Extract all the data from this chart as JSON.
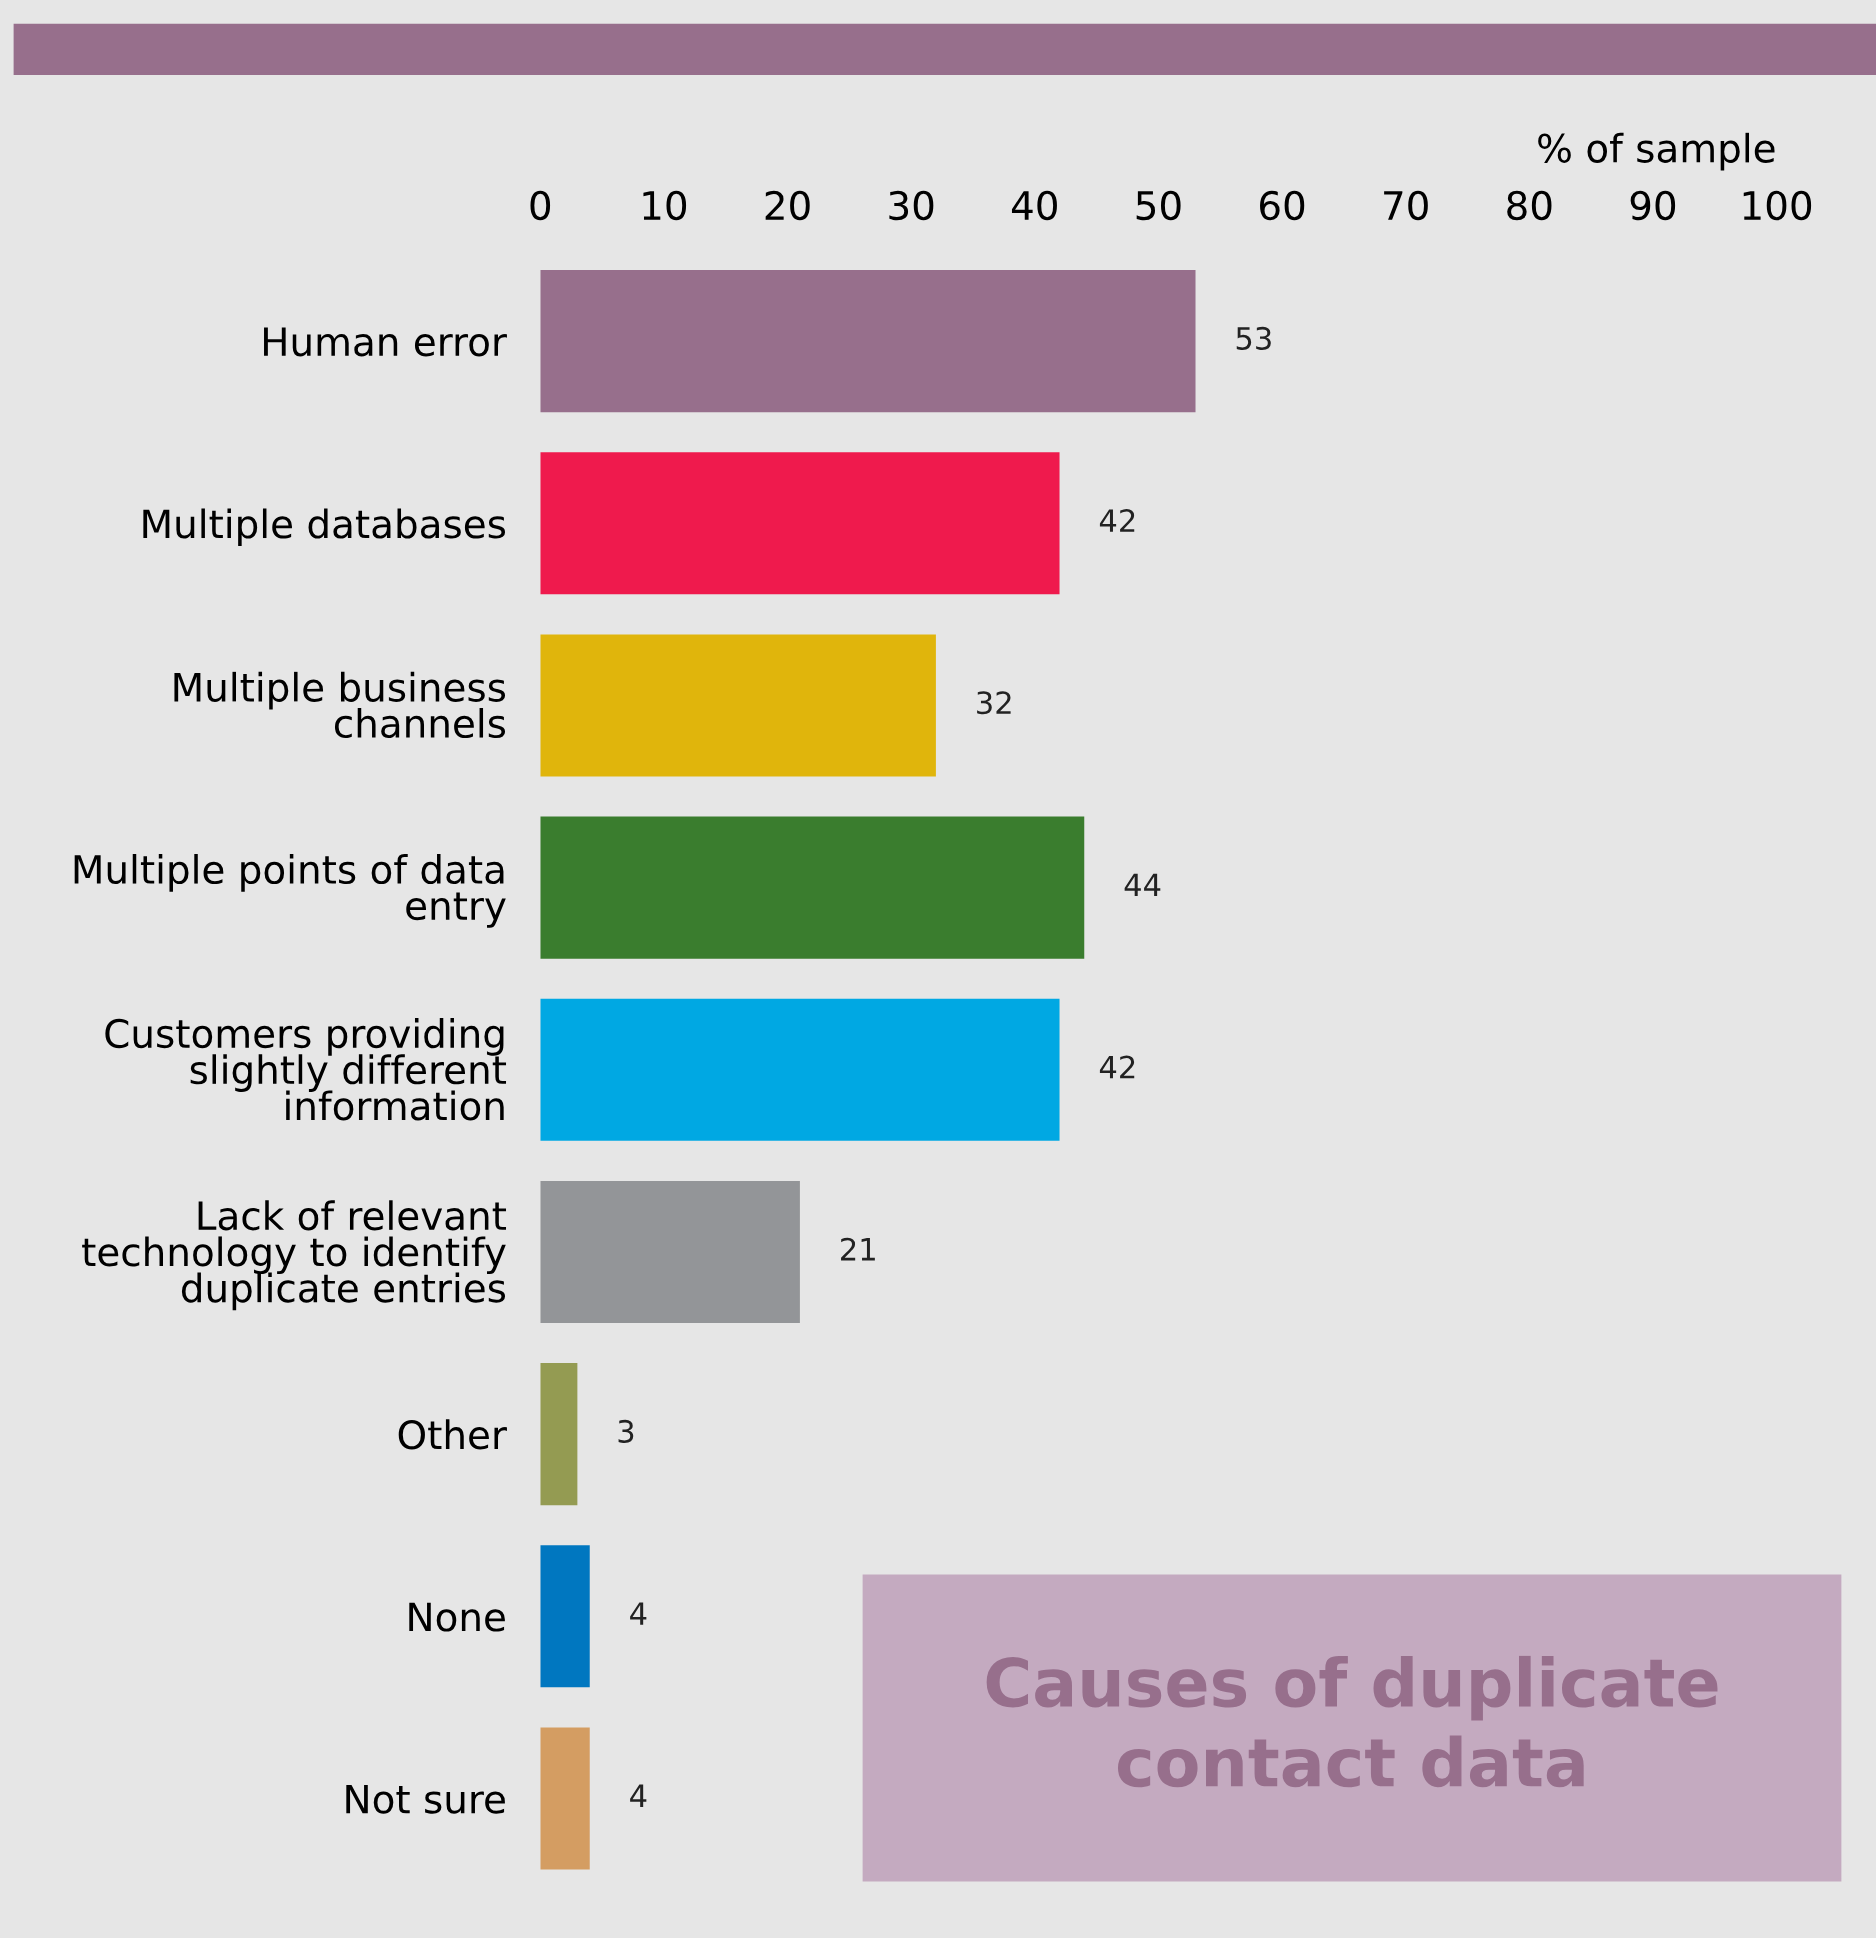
{
  "chart_data": {
    "type": "bar",
    "orientation": "horizontal",
    "title": "Causes of duplicate\ncontact data",
    "xlabel": "% of sample",
    "categories": [
      "Human error",
      "Multiple databases",
      "Multiple business\nchannels",
      "Multiple points of data\nentry",
      "Customers providing\nslightly different\ninformation",
      "Lack of relevant\ntechnology to identify\nduplicate entries",
      "Other",
      "None",
      "Not sure"
    ],
    "values": [
      53,
      42,
      32,
      44,
      42,
      21,
      3,
      4,
      4
    ],
    "colors": [
      "#976f8c",
      "#ef1a4d",
      "#e0b50c",
      "#3a7d2e",
      "#00a8e3",
      "#939598",
      "#949b52",
      "#0077c0",
      "#d49d62"
    ],
    "xlim": [
      0,
      100
    ],
    "xticks": [
      0,
      10,
      20,
      30,
      40,
      50,
      60,
      70,
      80,
      90,
      100
    ],
    "data_labels": true,
    "grid": false,
    "legend": false
  }
}
